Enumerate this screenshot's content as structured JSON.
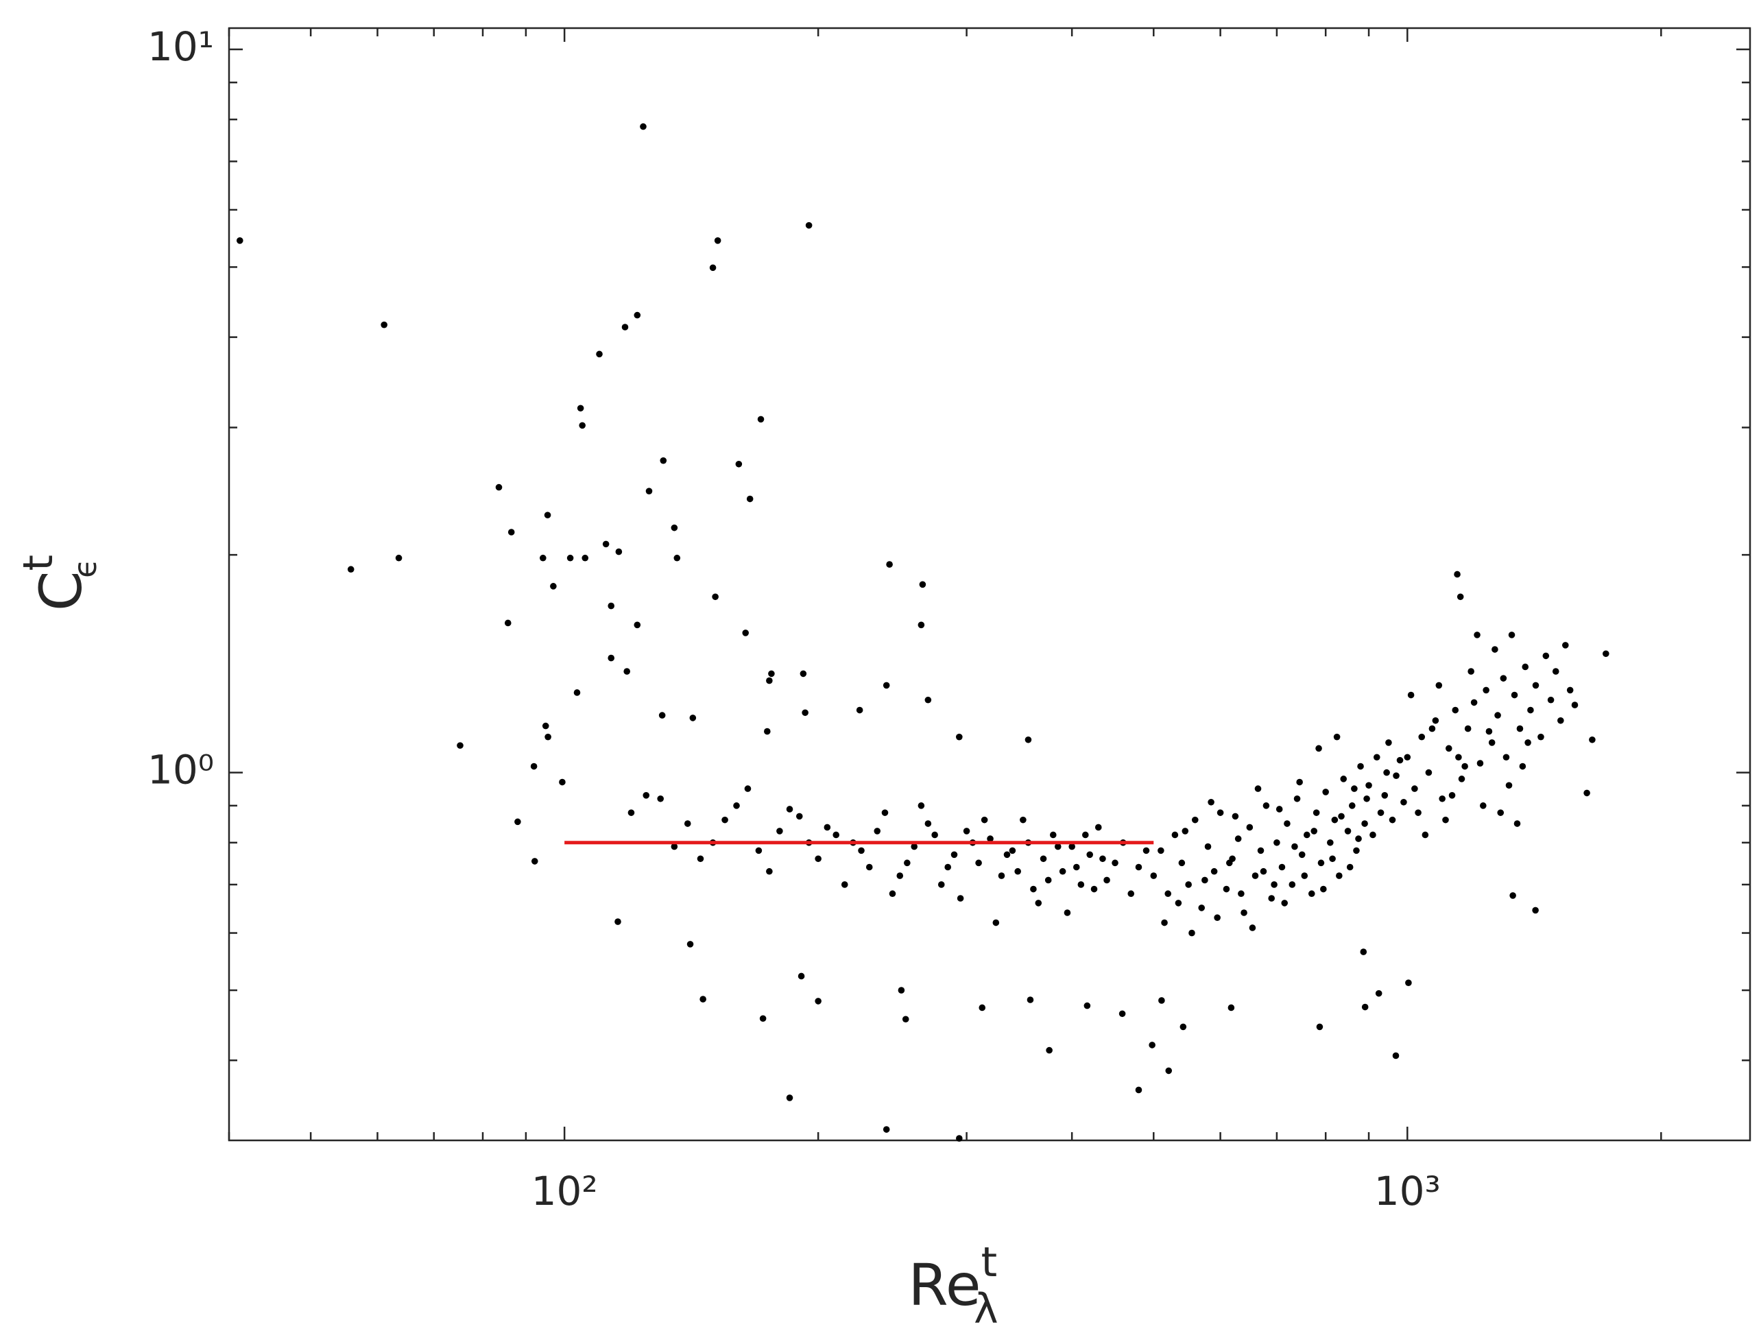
{
  "chart_data": {
    "type": "scatter",
    "log_x": true,
    "log_y": true,
    "marker_color": "#000000",
    "xlabel": {
      "text": "Re",
      "sup": "t",
      "sub": "λ"
    },
    "ylabel": {
      "text": "C",
      "sup": "t",
      "sub": "ϵ"
    },
    "xlim": [
      40,
      2550
    ],
    "ylim": [
      0.31,
      10.7
    ],
    "xticks": [
      {
        "value": 100,
        "label": "10²"
      },
      {
        "value": 1000,
        "label": "10³"
      }
    ],
    "yticks": [
      {
        "value": 1,
        "label": "10⁰"
      },
      {
        "value": 10,
        "label": "10¹"
      }
    ],
    "xminorticks": [
      40,
      50,
      60,
      70,
      80,
      90,
      200,
      300,
      400,
      500,
      600,
      700,
      800,
      900,
      2000
    ],
    "yminorticks": [
      0.4,
      0.5,
      0.6,
      0.7,
      0.8,
      0.9,
      2,
      3,
      4,
      5,
      6,
      7,
      8,
      9
    ],
    "reference_line": {
      "color": "#e41a1c",
      "x": [
        100,
        500
      ],
      "y": [
        0.8,
        0.8
      ]
    },
    "x": [
      41.2,
      61.1,
      55.8,
      63.6,
      75.2,
      124,
      195,
      152,
      150,
      122,
      118,
      110,
      104.5,
      105,
      171,
      161,
      131,
      126,
      83.6,
      166,
      95.5,
      86.5,
      135,
      112,
      116,
      94.3,
      101.6,
      105.8,
      136,
      243,
      266,
      97,
      113.6,
      151,
      85.7,
      122,
      164,
      265,
      113.6,
      118.6,
      176,
      192,
      175,
      241,
      270,
      103.5,
      130.6,
      95,
      95.6,
      142,
      193,
      174,
      224,
      294,
      355,
      92,
      99.4,
      88,
      92.2,
      115.7,
      141,
      146,
      172,
      191,
      200,
      185,
      241,
      294,
      251,
      254,
      313,
      357,
      376,
      417,
      459,
      480,
      498,
      521,
      511,
      542,
      618,
      787,
      887,
      925,
      891,
      969,
      1003,
      1419,
      1334,
      1633,
      1720,
      1657,
      1146,
      1156,
      120,
      130,
      140,
      150,
      160,
      170,
      180,
      190,
      200,
      210,
      220,
      230,
      240,
      250,
      260,
      270,
      280,
      290,
      300,
      310,
      320,
      330,
      340,
      350,
      360,
      370,
      380,
      390,
      400,
      410,
      420,
      430,
      440,
      450,
      460,
      470,
      480,
      490,
      125,
      135,
      145,
      155,
      165,
      175,
      185,
      195,
      205,
      215,
      225,
      235,
      245,
      255,
      265,
      275,
      285,
      295,
      305,
      315,
      325,
      335,
      345,
      355,
      365,
      375,
      385,
      395,
      405,
      415,
      425,
      435,
      500,
      510,
      520,
      530,
      540,
      550,
      560,
      570,
      580,
      590,
      600,
      610,
      620,
      630,
      640,
      650,
      660,
      670,
      680,
      690,
      700,
      710,
      720,
      730,
      740,
      750,
      760,
      770,
      780,
      790,
      800,
      810,
      820,
      830,
      840,
      850,
      860,
      870,
      880,
      890,
      900,
      910,
      920,
      930,
      940,
      950,
      960,
      970,
      980,
      990,
      515,
      535,
      555,
      575,
      595,
      615,
      635,
      655,
      675,
      695,
      715,
      735,
      755,
      775,
      795,
      815,
      835,
      855,
      875,
      895,
      545,
      585,
      625,
      665,
      705,
      745,
      785,
      825,
      865,
      945,
      1000,
      1020,
      1040,
      1060,
      1080,
      1100,
      1120,
      1140,
      1160,
      1180,
      1200,
      1220,
      1240,
      1260,
      1280,
      1300,
      1320,
      1340,
      1360,
      1380,
      1400,
      1420,
      1440,
      1460,
      1480,
      1500,
      1520,
      1540,
      1560,
      1580,
      1030,
      1070,
      1110,
      1150,
      1190,
      1230,
      1270,
      1310,
      1350,
      1390,
      1010,
      1050,
      1090,
      1130,
      1170,
      1210,
      1250,
      1290,
      1330,
      1370
    ],
    "y": [
      5.44,
      4.16,
      1.91,
      1.98,
      1.09,
      7.82,
      5.71,
      5.44,
      4.99,
      4.29,
      4.13,
      3.79,
      3.19,
      3.02,
      3.08,
      2.67,
      2.7,
      2.45,
      2.48,
      2.39,
      2.27,
      2.15,
      2.18,
      2.07,
      2.02,
      1.98,
      1.98,
      1.98,
      1.98,
      1.94,
      1.82,
      1.81,
      1.7,
      1.75,
      1.61,
      1.6,
      1.56,
      1.6,
      1.44,
      1.38,
      1.37,
      1.37,
      1.34,
      1.32,
      1.26,
      1.29,
      1.2,
      1.16,
      1.12,
      1.19,
      1.21,
      1.14,
      1.22,
      1.12,
      1.11,
      1.02,
      0.97,
      0.855,
      0.754,
      0.622,
      0.579,
      0.486,
      0.457,
      0.523,
      0.483,
      0.355,
      0.321,
      0.312,
      0.5,
      0.456,
      0.473,
      0.485,
      0.413,
      0.476,
      0.464,
      0.364,
      0.42,
      0.387,
      0.484,
      0.445,
      0.473,
      0.445,
      0.565,
      0.495,
      0.474,
      0.406,
      0.512,
      0.645,
      0.676,
      0.937,
      1.46,
      1.11,
      1.88,
      1.75,
      0.88,
      0.92,
      0.85,
      0.8,
      0.9,
      0.78,
      0.83,
      0.87,
      0.76,
      0.82,
      0.8,
      0.74,
      0.88,
      0.72,
      0.79,
      0.85,
      0.7,
      0.77,
      0.83,
      0.75,
      0.81,
      0.72,
      0.78,
      0.86,
      0.69,
      0.76,
      0.82,
      0.73,
      0.79,
      0.7,
      0.77,
      0.84,
      0.71,
      0.75,
      0.8,
      0.68,
      0.74,
      0.78,
      0.93,
      0.79,
      0.76,
      0.86,
      0.95,
      0.73,
      0.89,
      0.8,
      0.84,
      0.7,
      0.78,
      0.83,
      0.68,
      0.75,
      0.9,
      0.82,
      0.74,
      0.67,
      0.8,
      0.86,
      0.62,
      0.77,
      0.73,
      0.8,
      0.66,
      0.71,
      0.79,
      0.64,
      0.74,
      0.82,
      0.69,
      0.76,
      0.72,
      0.78,
      0.68,
      0.82,
      0.75,
      0.7,
      0.86,
      0.65,
      0.79,
      0.73,
      0.88,
      0.69,
      0.76,
      0.81,
      0.64,
      0.84,
      0.72,
      0.78,
      0.9,
      0.67,
      0.8,
      0.74,
      0.85,
      0.7,
      0.92,
      0.77,
      0.82,
      0.68,
      0.88,
      0.75,
      0.94,
      0.8,
      0.86,
      0.72,
      0.98,
      0.83,
      0.9,
      0.78,
      1.02,
      0.85,
      0.96,
      0.82,
      1.05,
      0.88,
      0.93,
      1.1,
      0.86,
      0.99,
      1.04,
      0.91,
      0.62,
      0.66,
      0.6,
      0.71,
      0.63,
      0.75,
      0.68,
      0.61,
      0.73,
      0.7,
      0.66,
      0.79,
      0.72,
      0.83,
      0.69,
      0.76,
      0.87,
      0.74,
      0.81,
      0.92,
      0.83,
      0.91,
      0.87,
      0.95,
      0.89,
      0.97,
      1.08,
      1.12,
      0.95,
      1.0,
      1.05,
      0.95,
      1.12,
      1.0,
      1.18,
      0.92,
      1.08,
      1.22,
      0.98,
      1.15,
      1.25,
      1.03,
      1.3,
      1.1,
      1.2,
      1.35,
      0.96,
      1.28,
      1.15,
      1.4,
      1.22,
      1.32,
      1.12,
      1.45,
      1.26,
      1.38,
      1.18,
      1.5,
      1.3,
      1.24,
      0.88,
      1.15,
      0.86,
      1.05,
      1.38,
      0.9,
      1.48,
      1.05,
      0.85,
      1.1,
      1.28,
      0.82,
      1.32,
      0.93,
      1.02,
      1.55,
      1.14,
      0.88,
      1.55,
      1.02
    ]
  }
}
